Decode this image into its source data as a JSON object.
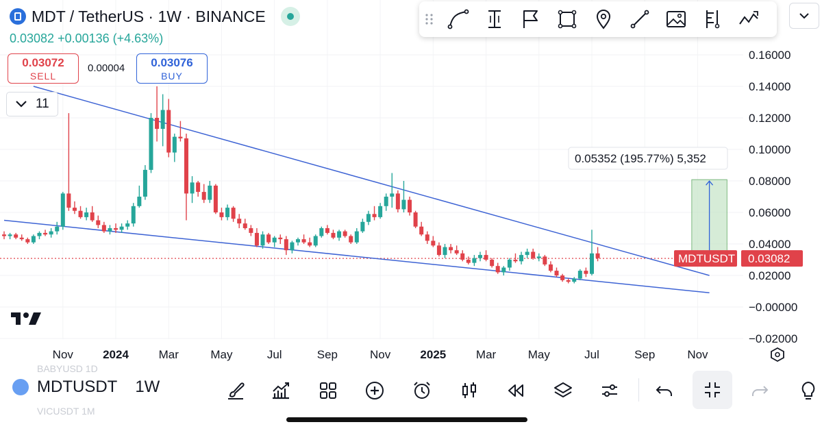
{
  "header": {
    "title": "MDT / TetherUS · 1W · BINANCE",
    "change": "0.03082 +0.00136 (+4.63%)",
    "sell": {
      "price": "0.03072",
      "label": "SELL"
    },
    "buy": {
      "price": "0.03076",
      "label": "BUY"
    },
    "spread": "0.00004",
    "indicators_count": "11",
    "colors": {
      "up": "#26a69a",
      "down": "#e0424a",
      "buy": "#2f62d8"
    }
  },
  "toolbar": {
    "icons": [
      "grip-icon",
      "curve-icon",
      "text-cursor-icon",
      "flag-icon",
      "rectangle-icon",
      "pin-icon",
      "trend-line-icon",
      "image-icon",
      "pitchfork-icon",
      "pattern-icon"
    ]
  },
  "measure": {
    "label": "0.05352 (195.77%) 5,352"
  },
  "price_tag": {
    "symbol": "MDTUSDT",
    "price": "0.03082"
  },
  "bottom": {
    "symbol": "MDTUSDT",
    "timeframe": "1W",
    "ghost_prev": "BABYUSD  1D",
    "ghost_next": "VICUSDT  1M"
  },
  "chart_data": {
    "type": "candlestick",
    "title": "",
    "xlabel": "",
    "ylabel": "",
    "ylim": [
      -0.02,
      0.165
    ],
    "y_ticks": [
      "0.16000",
      "0.14000",
      "0.12000",
      "0.10000",
      "0.08000",
      "0.06000",
      "0.04000",
      "0.02000",
      "−0.00000",
      "−0.02000"
    ],
    "y_tick_values": [
      0.16,
      0.14,
      0.12,
      0.1,
      0.08,
      0.06,
      0.04,
      0.02,
      0.0,
      -0.02
    ],
    "x_ticks": [
      {
        "label": "Nov",
        "i": 10,
        "bold": false
      },
      {
        "label": "2024",
        "i": 19,
        "bold": true
      },
      {
        "label": "Mar",
        "i": 28,
        "bold": false
      },
      {
        "label": "May",
        "i": 37,
        "bold": false
      },
      {
        "label": "Jul",
        "i": 46,
        "bold": false
      },
      {
        "label": "Sep",
        "i": 55,
        "bold": false
      },
      {
        "label": "Nov",
        "i": 64,
        "bold": false
      },
      {
        "label": "2025",
        "i": 73,
        "bold": true
      },
      {
        "label": "Mar",
        "i": 82,
        "bold": false
      },
      {
        "label": "May",
        "i": 91,
        "bold": false
      },
      {
        "label": "Jul",
        "i": 100,
        "bold": false
      },
      {
        "label": "Sep",
        "i": 109,
        "bold": false
      },
      {
        "label": "Nov",
        "i": 118,
        "bold": false
      }
    ],
    "ohlc": [
      [
        0.046,
        0.048,
        0.043,
        0.045
      ],
      [
        0.045,
        0.047,
        0.043,
        0.046
      ],
      [
        0.046,
        0.047,
        0.043,
        0.044
      ],
      [
        0.044,
        0.046,
        0.042,
        0.043
      ],
      [
        0.043,
        0.044,
        0.04,
        0.041
      ],
      [
        0.041,
        0.046,
        0.04,
        0.045
      ],
      [
        0.045,
        0.048,
        0.043,
        0.047
      ],
      [
        0.047,
        0.049,
        0.045,
        0.046
      ],
      [
        0.046,
        0.05,
        0.044,
        0.048
      ],
      [
        0.048,
        0.054,
        0.046,
        0.051
      ],
      [
        0.051,
        0.073,
        0.049,
        0.072
      ],
      [
        0.072,
        0.123,
        0.061,
        0.063
      ],
      [
        0.063,
        0.067,
        0.059,
        0.061
      ],
      [
        0.061,
        0.064,
        0.056,
        0.057
      ],
      [
        0.057,
        0.063,
        0.055,
        0.06
      ],
      [
        0.06,
        0.064,
        0.054,
        0.055
      ],
      [
        0.055,
        0.058,
        0.05,
        0.052
      ],
      [
        0.052,
        0.054,
        0.047,
        0.048
      ],
      [
        0.048,
        0.052,
        0.046,
        0.05
      ],
      [
        0.05,
        0.053,
        0.047,
        0.049
      ],
      [
        0.049,
        0.053,
        0.047,
        0.051
      ],
      [
        0.051,
        0.055,
        0.049,
        0.053
      ],
      [
        0.053,
        0.066,
        0.051,
        0.064
      ],
      [
        0.064,
        0.077,
        0.063,
        0.07
      ],
      [
        0.07,
        0.09,
        0.068,
        0.087
      ],
      [
        0.087,
        0.123,
        0.085,
        0.12
      ],
      [
        0.12,
        0.14,
        0.105,
        0.113
      ],
      [
        0.113,
        0.135,
        0.102,
        0.125
      ],
      [
        0.125,
        0.132,
        0.095,
        0.098
      ],
      [
        0.098,
        0.11,
        0.092,
        0.108
      ],
      [
        0.108,
        0.118,
        0.105,
        0.107
      ],
      [
        0.107,
        0.11,
        0.055,
        0.072
      ],
      [
        0.072,
        0.083,
        0.066,
        0.079
      ],
      [
        0.079,
        0.08,
        0.07,
        0.073
      ],
      [
        0.073,
        0.078,
        0.066,
        0.068
      ],
      [
        0.068,
        0.08,
        0.066,
        0.077
      ],
      [
        0.077,
        0.078,
        0.059,
        0.06
      ],
      [
        0.06,
        0.063,
        0.055,
        0.057
      ],
      [
        0.057,
        0.065,
        0.055,
        0.063
      ],
      [
        0.063,
        0.064,
        0.054,
        0.056
      ],
      [
        0.056,
        0.059,
        0.05,
        0.053
      ],
      [
        0.053,
        0.056,
        0.049,
        0.05
      ],
      [
        0.05,
        0.052,
        0.045,
        0.047
      ],
      [
        0.047,
        0.05,
        0.038,
        0.039
      ],
      [
        0.039,
        0.048,
        0.037,
        0.046
      ],
      [
        0.046,
        0.047,
        0.04,
        0.041
      ],
      [
        0.041,
        0.045,
        0.038,
        0.044
      ],
      [
        0.044,
        0.046,
        0.04,
        0.043
      ],
      [
        0.043,
        0.045,
        0.033,
        0.036
      ],
      [
        0.036,
        0.042,
        0.034,
        0.041
      ],
      [
        0.041,
        0.044,
        0.039,
        0.043
      ],
      [
        0.043,
        0.046,
        0.04,
        0.041
      ],
      [
        0.041,
        0.044,
        0.038,
        0.039
      ],
      [
        0.039,
        0.046,
        0.038,
        0.045
      ],
      [
        0.045,
        0.051,
        0.044,
        0.05
      ],
      [
        0.05,
        0.052,
        0.046,
        0.047
      ],
      [
        0.047,
        0.049,
        0.043,
        0.044
      ],
      [
        0.044,
        0.049,
        0.042,
        0.048
      ],
      [
        0.048,
        0.049,
        0.044,
        0.045
      ],
      [
        0.045,
        0.046,
        0.04,
        0.041
      ],
      [
        0.041,
        0.05,
        0.04,
        0.048
      ],
      [
        0.048,
        0.056,
        0.047,
        0.054
      ],
      [
        0.054,
        0.061,
        0.052,
        0.059
      ],
      [
        0.059,
        0.064,
        0.055,
        0.057
      ],
      [
        0.057,
        0.066,
        0.056,
        0.064
      ],
      [
        0.064,
        0.072,
        0.061,
        0.07
      ],
      [
        0.07,
        0.085,
        0.063,
        0.072
      ],
      [
        0.072,
        0.074,
        0.06,
        0.062
      ],
      [
        0.062,
        0.08,
        0.06,
        0.068
      ],
      [
        0.068,
        0.07,
        0.058,
        0.06
      ],
      [
        0.06,
        0.061,
        0.05,
        0.051
      ],
      [
        0.051,
        0.054,
        0.045,
        0.046
      ],
      [
        0.046,
        0.048,
        0.04,
        0.042
      ],
      [
        0.042,
        0.045,
        0.038,
        0.039
      ],
      [
        0.039,
        0.041,
        0.032,
        0.033
      ],
      [
        0.033,
        0.04,
        0.031,
        0.038
      ],
      [
        0.038,
        0.04,
        0.034,
        0.036
      ],
      [
        0.036,
        0.039,
        0.033,
        0.034
      ],
      [
        0.034,
        0.036,
        0.029,
        0.03
      ],
      [
        0.03,
        0.032,
        0.027,
        0.028
      ],
      [
        0.028,
        0.033,
        0.026,
        0.031
      ],
      [
        0.031,
        0.035,
        0.029,
        0.033
      ],
      [
        0.033,
        0.036,
        0.029,
        0.03
      ],
      [
        0.03,
        0.031,
        0.025,
        0.026
      ],
      [
        0.026,
        0.028,
        0.021,
        0.022
      ],
      [
        0.022,
        0.026,
        0.02,
        0.025
      ],
      [
        0.025,
        0.031,
        0.023,
        0.03
      ],
      [
        0.03,
        0.034,
        0.028,
        0.029
      ],
      [
        0.029,
        0.035,
        0.027,
        0.033
      ],
      [
        0.033,
        0.037,
        0.031,
        0.035
      ],
      [
        0.035,
        0.037,
        0.03,
        0.031
      ],
      [
        0.031,
        0.034,
        0.029,
        0.032
      ],
      [
        0.032,
        0.033,
        0.026,
        0.027
      ],
      [
        0.027,
        0.029,
        0.022,
        0.023
      ],
      [
        0.023,
        0.025,
        0.019,
        0.02
      ],
      [
        0.02,
        0.021,
        0.016,
        0.017
      ],
      [
        0.017,
        0.018,
        0.015,
        0.016
      ],
      [
        0.016,
        0.019,
        0.015,
        0.018
      ],
      [
        0.018,
        0.024,
        0.017,
        0.023
      ],
      [
        0.023,
        0.025,
        0.019,
        0.021
      ],
      [
        0.021,
        0.049,
        0.02,
        0.034
      ],
      [
        0.034,
        0.038,
        0.029,
        0.031
      ]
    ],
    "trendlines": [
      {
        "name": "upper",
        "x1": 5,
        "y1": 0.14,
        "x2": 120,
        "y2": 0.02
      },
      {
        "name": "lower",
        "x1": 0,
        "y1": 0.055,
        "x2": 120,
        "y2": 0.009
      }
    ],
    "measure_range": {
      "x1": 117,
      "x2": 123,
      "y_from": 0.0273,
      "y_to": 0.0808
    },
    "current_price": 0.03082
  }
}
